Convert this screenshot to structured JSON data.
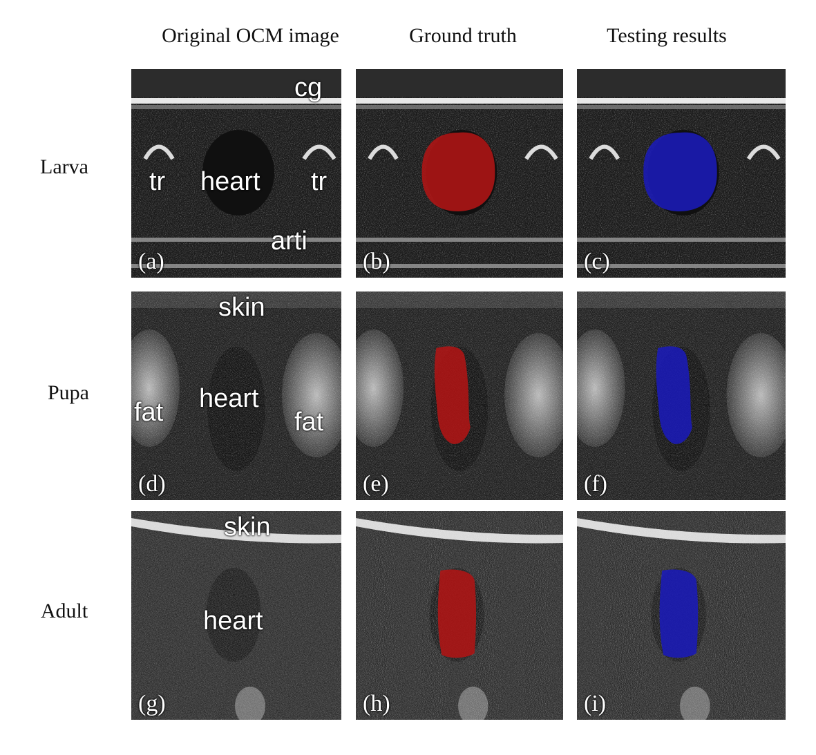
{
  "columns": [
    "Original OCM image",
    "Ground truth",
    "Testing results"
  ],
  "rows": [
    "Larva",
    "Pupa",
    "Adult"
  ],
  "colors": {
    "ground_truth": "#b01515",
    "testing_result": "#1a1ab8"
  },
  "panels": {
    "a": {
      "letter": "(a)",
      "labels": [
        "cg",
        "tr",
        "heart",
        "tr",
        "arti"
      ]
    },
    "b": {
      "letter": "(b)"
    },
    "c": {
      "letter": "(c)"
    },
    "d": {
      "letter": "(d)",
      "labels": [
        "skin",
        "fat",
        "heart",
        "fat"
      ]
    },
    "e": {
      "letter": "(e)"
    },
    "f": {
      "letter": "(f)"
    },
    "g": {
      "letter": "(g)",
      "labels": [
        "skin",
        "heart"
      ]
    },
    "h": {
      "letter": "(h)"
    },
    "i": {
      "letter": "(i)"
    }
  }
}
